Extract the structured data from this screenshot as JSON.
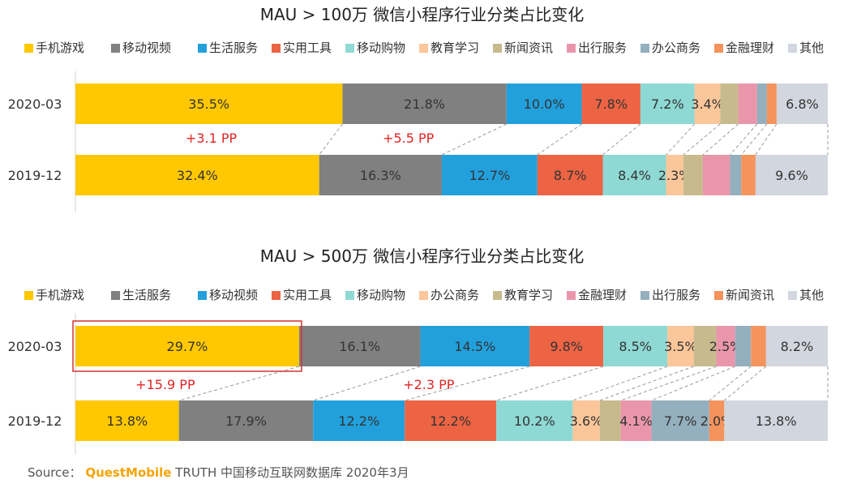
{
  "colors": {
    "yellow": "#ffc800",
    "gray": "#808080",
    "blue": "#22a0dc",
    "red": "#ec6444",
    "teal": "#8ed9d4",
    "peach": "#fbc69a",
    "khaki": "#c7bb8e",
    "pink": "#ea96aa",
    "slate": "#94afbe",
    "orange": "#f5935c",
    "lightgray": "#d2d6de",
    "annotation": "#e02424"
  },
  "source": {
    "label": "Source：",
    "brand": "QuestMobile",
    "text": "TRUTH 中国移动互联网数据库 2020年3月"
  },
  "chart_data": [
    {
      "type": "bar",
      "orientation": "horizontal-stacked-100",
      "title": "MAU > 100万 微信小程序行业分类占比变化",
      "categories": [
        "2020-03",
        "2019-12"
      ],
      "legend_position": "top",
      "series": [
        {
          "name": "手机游戏",
          "color": "yellow",
          "values": [
            35.5,
            32.4
          ],
          "labels": [
            "35.5%",
            "32.4%"
          ]
        },
        {
          "name": "移动视频",
          "color": "gray",
          "values": [
            21.8,
            16.3
          ],
          "labels": [
            "21.8%",
            "16.3%"
          ]
        },
        {
          "name": "生活服务",
          "color": "blue",
          "values": [
            10.0,
            12.7
          ],
          "labels": [
            "10.0%",
            "12.7%"
          ]
        },
        {
          "name": "实用工具",
          "color": "red",
          "values": [
            7.8,
            8.7
          ],
          "labels": [
            "7.8%",
            "8.7%"
          ]
        },
        {
          "name": "移动购物",
          "color": "teal",
          "values": [
            7.2,
            8.4
          ],
          "labels": [
            "7.2%",
            "8.4%"
          ]
        },
        {
          "name": "教育学习",
          "color": "peach",
          "values": [
            3.4,
            2.3
          ],
          "labels": [
            "3.4%",
            "2.3%"
          ]
        },
        {
          "name": "新闻资讯",
          "color": "khaki",
          "values": [
            2.4,
            2.6
          ],
          "labels": [
            "",
            ""
          ]
        },
        {
          "name": "出行服务",
          "color": "pink",
          "values": [
            2.5,
            3.6
          ],
          "labels": [
            "",
            ""
          ]
        },
        {
          "name": "办公商务",
          "color": "slate",
          "values": [
            1.3,
            1.5
          ],
          "labels": [
            "",
            ""
          ]
        },
        {
          "name": "金融理财",
          "color": "orange",
          "values": [
            1.3,
            1.9
          ],
          "labels": [
            "",
            ""
          ]
        },
        {
          "name": "其他",
          "color": "lightgray",
          "values": [
            6.8,
            9.6
          ],
          "labels": [
            "6.8%",
            "9.6%"
          ]
        }
      ],
      "annotations": [
        {
          "text": "+3.1 PP",
          "after_segment": 0
        },
        {
          "text": "+5.5 PP",
          "after_segment": 1
        }
      ]
    },
    {
      "type": "bar",
      "orientation": "horizontal-stacked-100",
      "title": "MAU > 500万 微信小程序行业分类占比变化",
      "categories": [
        "2020-03",
        "2019-12"
      ],
      "legend_position": "top",
      "highlight": {
        "category": "2020-03",
        "series": 0
      },
      "series": [
        {
          "name": "手机游戏",
          "color": "yellow",
          "values": [
            29.7,
            13.8
          ],
          "labels": [
            "29.7%",
            "13.8%"
          ]
        },
        {
          "name": "生活服务",
          "color": "gray",
          "values": [
            16.1,
            17.9
          ],
          "labels": [
            "16.1%",
            "17.9%"
          ]
        },
        {
          "name": "移动视频",
          "color": "blue",
          "values": [
            14.5,
            12.2
          ],
          "labels": [
            "14.5%",
            "12.2%"
          ]
        },
        {
          "name": "实用工具",
          "color": "red",
          "values": [
            9.8,
            12.2
          ],
          "labels": [
            "9.8%",
            "12.2%"
          ]
        },
        {
          "name": "移动购物",
          "color": "teal",
          "values": [
            8.5,
            10.2
          ],
          "labels": [
            "8.5%",
            "10.2%"
          ]
        },
        {
          "name": "办公商务",
          "color": "peach",
          "values": [
            3.5,
            3.6
          ],
          "labels": [
            "3.5%",
            "3.6%"
          ]
        },
        {
          "name": "教育学习",
          "color": "khaki",
          "values": [
            3.0,
            2.8
          ],
          "labels": [
            "",
            ""
          ]
        },
        {
          "name": "金融理财",
          "color": "pink",
          "values": [
            2.5,
            4.1
          ],
          "labels": [
            "2.5%",
            "4.1%"
          ]
        },
        {
          "name": "出行服务",
          "color": "slate",
          "values": [
            2.1,
            7.7
          ],
          "labels": [
            "",
            "7.7%"
          ]
        },
        {
          "name": "新闻资讯",
          "color": "orange",
          "values": [
            2.0,
            2.0
          ],
          "labels": [
            "",
            "2.0%"
          ]
        },
        {
          "name": "其他",
          "color": "lightgray",
          "values": [
            8.2,
            13.8
          ],
          "labels": [
            "8.2%",
            "13.8%"
          ]
        }
      ],
      "annotations": [
        {
          "text": "+15.9 PP",
          "after_segment": 0
        },
        {
          "text": "+2.3 PP",
          "after_segment": 2
        }
      ]
    }
  ]
}
